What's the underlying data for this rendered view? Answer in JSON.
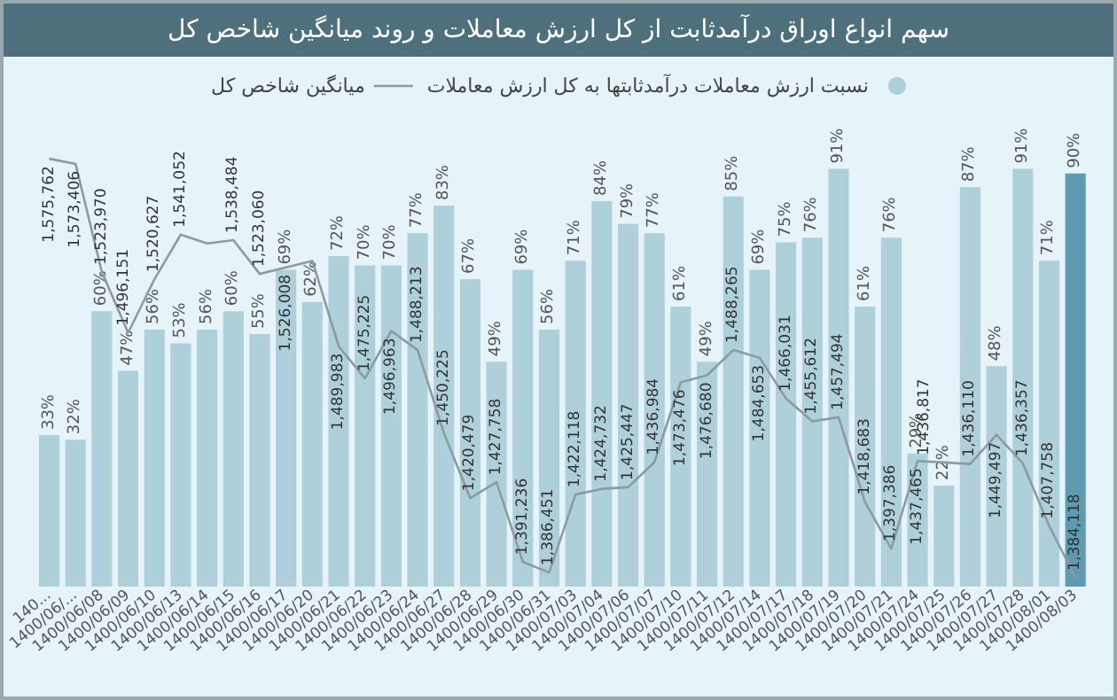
{
  "chart_data": {
    "type": "bar",
    "title": "سهم انواع اوراق درآمدثابت از کل ارزش معاملات و روند میانگین شاخص کل",
    "categories": [
      "140...",
      "1400/06/...",
      "1400/06/08",
      "1400/06/09",
      "1400/06/10",
      "1400/06/13",
      "1400/06/14",
      "1400/06/15",
      "1400/06/16",
      "1400/06/17",
      "1400/06/20",
      "1400/06/21",
      "1400/06/22",
      "1400/06/23",
      "1400/06/24",
      "1400/06/27",
      "1400/06/28",
      "1400/06/29",
      "1400/06/30",
      "1400/06/31",
      "1400/07/03",
      "1400/07/04",
      "1400/07/06",
      "1400/07/07",
      "1400/07/10",
      "1400/07/11",
      "1400/07/12",
      "1400/07/14",
      "1400/07/17",
      "1400/07/18",
      "1400/07/19",
      "1400/07/20",
      "1400/07/21",
      "1400/07/24",
      "1400/07/25",
      "1400/07/26",
      "1400/07/27",
      "1400/07/28",
      "1400/08/01",
      "1400/08/03"
    ],
    "series": [
      {
        "name": "نسبت ارزش معاملات درآمدثابتها به کل ارزش معاملات",
        "color": "#aed0db",
        "colors": [
          "#aed0db",
          "#aed0db",
          "#aed0db",
          "#aed0db",
          "#aed0db",
          "#aed0db",
          "#aed0db",
          "#aed0db",
          "#aed0db",
          "#aed0db",
          "#aed0db",
          "#aed0db",
          "#aed0db",
          "#aed0db",
          "#aed0db",
          "#aed0db",
          "#aed0db",
          "#aed0db",
          "#aed0db",
          "#aed0db",
          "#aed0db",
          "#aed0db",
          "#aed0db",
          "#aed0db",
          "#aed0db",
          "#aed0db",
          "#aed0db",
          "#aed0db",
          "#aed0db",
          "#aed0db",
          "#aed0db",
          "#aed0db",
          "#aed0db",
          "#aed0db",
          "#aed0db",
          "#aed0db",
          "#aed0db",
          "#aed0db",
          "#aed0db",
          "#5e9bb0"
        ],
        "values": [
          33,
          32,
          60,
          47,
          56,
          53,
          56,
          60,
          55,
          69,
          62,
          72,
          70,
          70,
          77,
          83,
          67,
          49,
          69,
          56,
          71,
          84,
          79,
          77,
          61,
          49,
          85,
          69,
          75,
          76,
          91,
          61,
          76,
          29,
          22,
          87,
          48,
          91,
          71,
          90
        ],
        "value_labels": [
          "33%",
          "32%",
          "60%",
          "47%",
          "56%",
          "53%",
          "56%",
          "60%",
          "55%",
          "69%",
          "62%",
          "72%",
          "70%",
          "70%",
          "77%",
          "83%",
          "67%",
          "49%",
          "69%",
          "56%",
          "71%",
          "84%",
          "79%",
          "77%",
          "61%",
          "49%",
          "85%",
          "69%",
          "75%",
          "76%",
          "91%",
          "61%",
          "76%",
          "29%",
          "22%",
          "87%",
          "48%",
          "91%",
          "71%",
          "90%"
        ]
      },
      {
        "name": "میانگین شاخص کل",
        "type": "line",
        "axis": "y2",
        "color": "#8c9ba1",
        "marker": "none",
        "line_style": "solid",
        "values": [
          1575762,
          1573406,
          1523970,
          1496151,
          1520627,
          1541052,
          1537000,
          1538484,
          1523060,
          1526008,
          1529000,
          1489983,
          1475225,
          1496963,
          1488213,
          1450225,
          1420479,
          1427758,
          1391236,
          1386451,
          1422118,
          1424732,
          1425447,
          1436984,
          1473476,
          1476680,
          1488265,
          1484653,
          1466031,
          1455612,
          1457494,
          1418683,
          1397386,
          1437465,
          1436817,
          1436110,
          1449497,
          1436357,
          1407758,
          1384118
        ],
        "value_labels": [
          "1,575,762",
          "1,573,406",
          "1,523,970",
          "1,496,151",
          "1,520,627",
          "1,541,052",
          null,
          "1,538,484",
          "1,523,060",
          "1,526,008",
          null,
          "1,489,983",
          "1,475,225",
          "1,496,963",
          "1,488,213",
          "1,450,225",
          "1,420,479",
          "1,427,758",
          "1,391,236",
          "1,386,451",
          "1,422,118",
          "1,424,732",
          "1,425,447",
          "1,436,984",
          "1,473,476",
          "1,476,680",
          "1,488,265",
          "1,484,653",
          "1,466,031",
          "1,455,612",
          "1,457,494",
          "1,418,683",
          "1,397,386",
          "1,437,465",
          "1,436,817",
          "1,436,110",
          "1,449,497",
          "1,436,357",
          "1,407,758",
          "1,384,118"
        ]
      }
    ],
    "legend": "top",
    "grid": false
  }
}
